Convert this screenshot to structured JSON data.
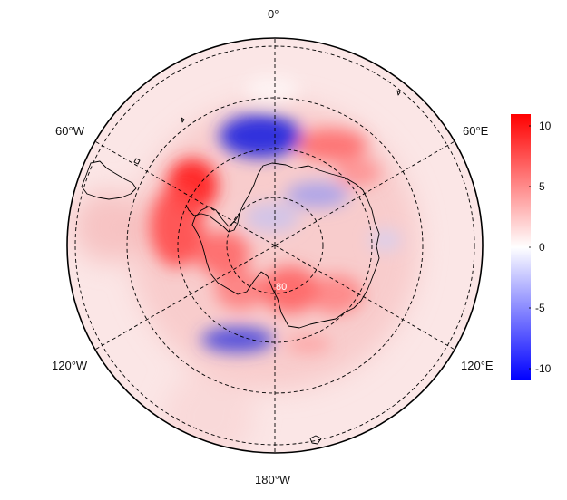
{
  "map": {
    "projection": "south polar stereographic",
    "longitude_labels": {
      "top": "0°",
      "upper_left": "60°W",
      "upper_right": "60°E",
      "lower_left": "120°W",
      "lower_right": "120°E",
      "bottom": "180°W"
    },
    "latitude_label": "80",
    "colors": {
      "positive": "#ff0000",
      "negative": "#0000ff",
      "neutral": "#ffffff",
      "boundary": "#000000",
      "coastline": "#000000"
    }
  },
  "colorbar": {
    "min": -11,
    "max": 11,
    "ticks": [
      "10",
      "5",
      "0",
      "-5",
      "-10"
    ]
  }
}
